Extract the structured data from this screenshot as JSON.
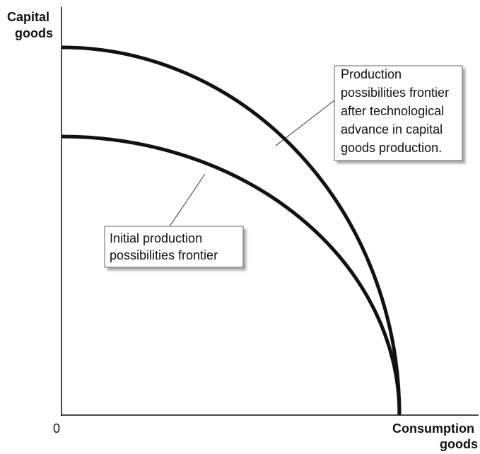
{
  "axes": {
    "y_label": [
      "Capital",
      "goods"
    ],
    "x_label": [
      "Consumption",
      "goods"
    ],
    "origin": "0"
  },
  "callouts": [
    {
      "lines": [
        "Production",
        "possibilities frontier",
        "after technological",
        "advance in capital",
        "goods production."
      ]
    },
    {
      "lines": [
        "Initial production",
        "possibilities frontier"
      ]
    }
  ]
}
